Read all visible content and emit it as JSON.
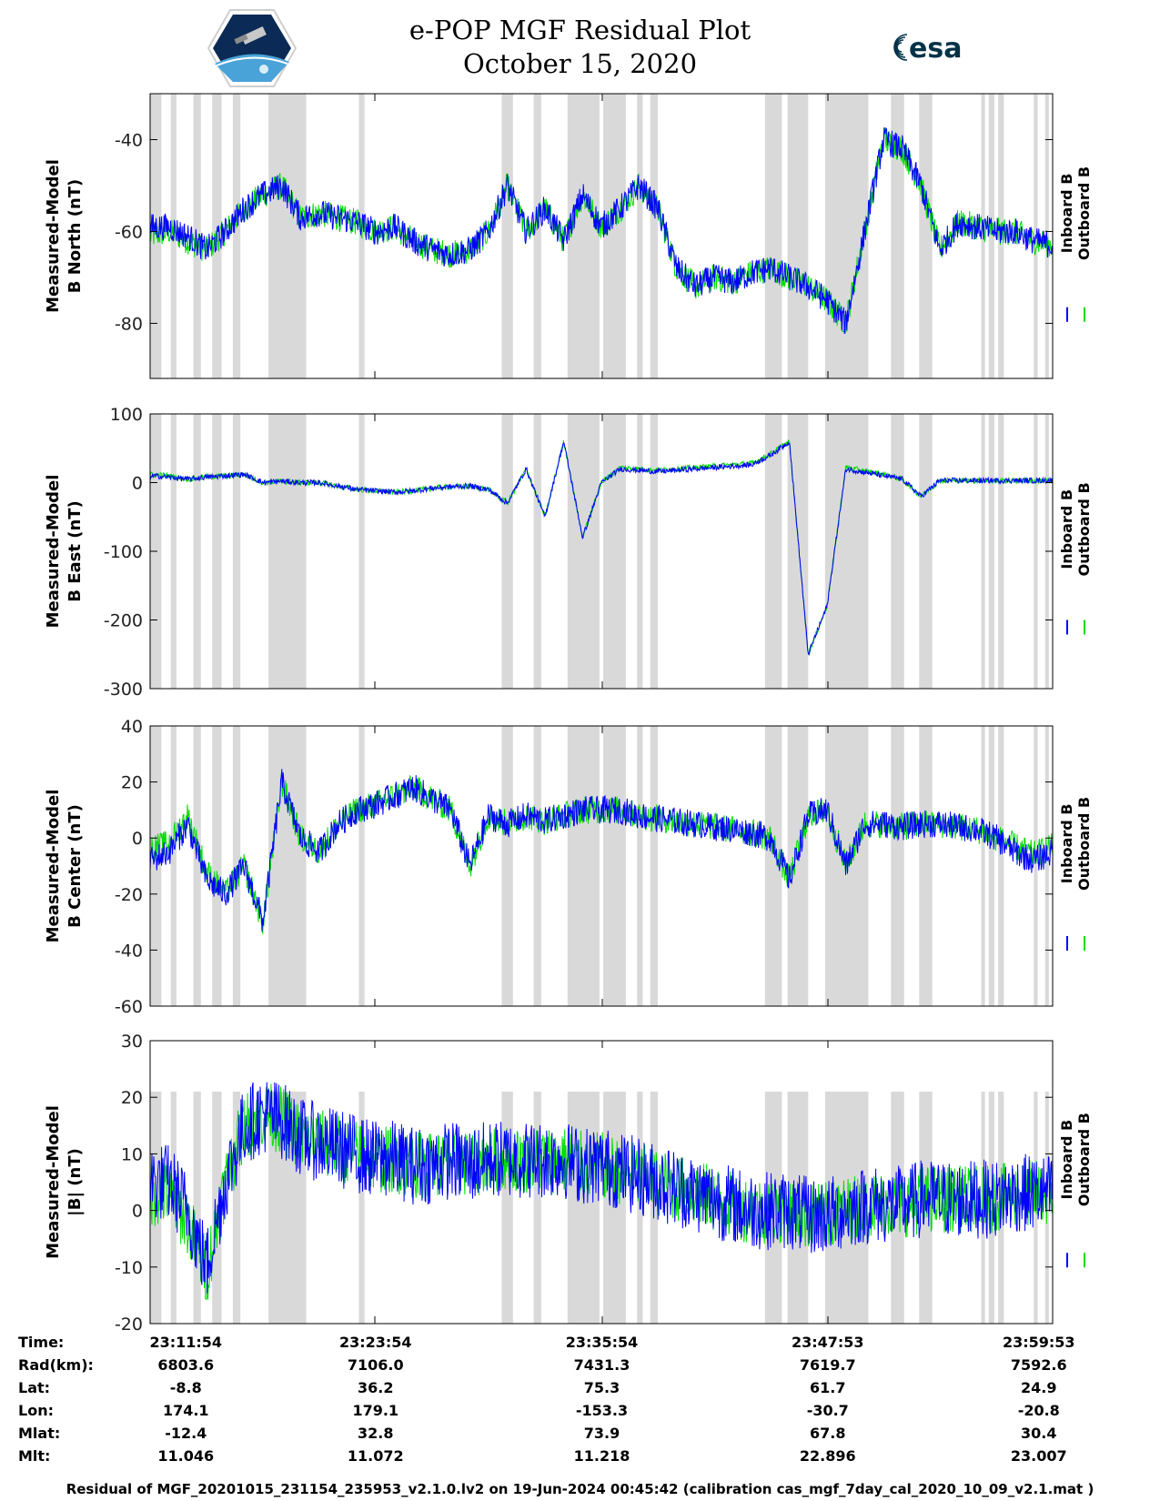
{
  "header": {
    "title_line1": "e-POP MGF Residual Plot",
    "title_line2": "October 15, 2020",
    "logo_left": "cassiope-logo",
    "logo_right_text": "esa"
  },
  "colors": {
    "inboard": "#0000ff",
    "outboard": "#00dd00",
    "shade": "#d9d9d9",
    "axis": "#000000"
  },
  "legend": {
    "inboard_label": "Inboard B",
    "outboard_label": "Outboard B"
  },
  "chart_data": [
    {
      "type": "line",
      "ylabel_line1": "Measured-Model",
      "ylabel_line2": "B North (nT)",
      "ylim": [
        -92,
        -30
      ],
      "yticks": [
        -40,
        -60,
        -80
      ],
      "ytick_labels": [
        "-40",
        "-60",
        "-80"
      ],
      "x_minutes": [
        0,
        1,
        2,
        3,
        4,
        5,
        6,
        7,
        8,
        9,
        10,
        11,
        12,
        13,
        14,
        15,
        16,
        17,
        18,
        19,
        20,
        21,
        22,
        23,
        24,
        25,
        26,
        27,
        28,
        29,
        30,
        31,
        32,
        33,
        34,
        35,
        36,
        37,
        38,
        39,
        40,
        41,
        42,
        43,
        44,
        45,
        46,
        47,
        48
      ],
      "series": [
        {
          "name": "Inboard B",
          "values": [
            -59,
            -59,
            -61,
            -64,
            -60,
            -55,
            -52,
            -50,
            -57,
            -56,
            -57,
            -58,
            -60,
            -59,
            -62,
            -64,
            -65,
            -64,
            -60,
            -50,
            -60,
            -55,
            -62,
            -52,
            -59,
            -55,
            -50,
            -55,
            -68,
            -72,
            -70,
            -71,
            -69,
            -68,
            -70,
            -72,
            -75,
            -80,
            -60,
            -40,
            -42,
            -50,
            -64,
            -58,
            -59,
            -60,
            -60,
            -62,
            -63
          ],
          "noise": 3
        },
        {
          "name": "Outboard B",
          "values": [
            -61,
            -60,
            -62,
            -64,
            -60,
            -55,
            -52,
            -50,
            -57,
            -56,
            -57,
            -58,
            -60,
            -59,
            -62,
            -64,
            -65,
            -64,
            -60,
            -50,
            -60,
            -55,
            -62,
            -52,
            -59,
            -55,
            -50,
            -55,
            -68,
            -72,
            -70,
            -71,
            -69,
            -68,
            -70,
            -72,
            -75,
            -80,
            -60,
            -40,
            -42,
            -50,
            -64,
            -58,
            -59,
            -60,
            -60,
            -62,
            -63
          ],
          "noise": 3
        }
      ]
    },
    {
      "type": "line",
      "ylabel_line1": "Measured-Model",
      "ylabel_line2": "B East (nT)",
      "ylim": [
        -300,
        100
      ],
      "yticks": [
        100,
        0,
        -100,
        -200,
        -300
      ],
      "ytick_labels": [
        "100",
        "0",
        "-100",
        "-200",
        "-300"
      ],
      "x_minutes": [
        0,
        1,
        2,
        3,
        4,
        5,
        6,
        7,
        8,
        9,
        10,
        11,
        12,
        13,
        14,
        15,
        16,
        17,
        18,
        19,
        20,
        21,
        22,
        23,
        24,
        25,
        26,
        27,
        28,
        29,
        30,
        31,
        32,
        33,
        34,
        35,
        36,
        37,
        38,
        39,
        40,
        41,
        42,
        43,
        44,
        45,
        46,
        47,
        48
      ],
      "series": [
        {
          "name": "Inboard B",
          "values": [
            10,
            8,
            5,
            8,
            10,
            12,
            0,
            2,
            0,
            0,
            -5,
            -10,
            -12,
            -14,
            -12,
            -8,
            -6,
            -5,
            -10,
            -30,
            20,
            -50,
            60,
            -80,
            0,
            20,
            18,
            16,
            18,
            20,
            22,
            24,
            26,
            40,
            60,
            -250,
            -180,
            20,
            15,
            10,
            5,
            -20,
            3,
            3,
            3,
            3,
            3,
            3,
            3
          ],
          "noise": 4
        },
        {
          "name": "Outboard B",
          "values": [
            12,
            10,
            5,
            8,
            10,
            12,
            0,
            2,
            0,
            0,
            -5,
            -10,
            -12,
            -14,
            -12,
            -8,
            -6,
            -5,
            -10,
            -30,
            20,
            -50,
            60,
            -80,
            0,
            22,
            20,
            18,
            20,
            22,
            24,
            26,
            28,
            42,
            60,
            -250,
            -180,
            22,
            17,
            12,
            5,
            -20,
            3,
            3,
            3,
            3,
            3,
            3,
            3
          ],
          "noise": 4
        }
      ]
    },
    {
      "type": "line",
      "ylabel_line1": "Measured-Model",
      "ylabel_line2": "B Center (nT)",
      "ylim": [
        -60,
        40
      ],
      "yticks": [
        40,
        20,
        0,
        -20,
        -40,
        -60
      ],
      "ytick_labels": [
        "40",
        "20",
        "0",
        "-20",
        "-40",
        "-60"
      ],
      "x_minutes": [
        0,
        1,
        2,
        3,
        4,
        5,
        6,
        7,
        8,
        9,
        10,
        11,
        12,
        13,
        14,
        15,
        16,
        17,
        18,
        19,
        20,
        21,
        22,
        23,
        24,
        25,
        26,
        27,
        28,
        29,
        30,
        31,
        32,
        33,
        34,
        35,
        36,
        37,
        38,
        39,
        40,
        41,
        42,
        43,
        44,
        45,
        46,
        47,
        48
      ],
      "series": [
        {
          "name": "Inboard B",
          "values": [
            -8,
            -5,
            5,
            -15,
            -20,
            -10,
            -30,
            20,
            0,
            -5,
            5,
            10,
            12,
            15,
            18,
            14,
            10,
            -10,
            8,
            5,
            8,
            6,
            8,
            10,
            10,
            10,
            8,
            7,
            6,
            5,
            4,
            3,
            2,
            0,
            -15,
            8,
            10,
            -10,
            5,
            5,
            4,
            5,
            5,
            4,
            3,
            0,
            -5,
            -8,
            -5
          ],
          "noise": 5
        },
        {
          "name": "Outboard B",
          "values": [
            -4,
            -2,
            8,
            -12,
            -20,
            -10,
            -30,
            20,
            0,
            -5,
            5,
            10,
            12,
            15,
            18,
            14,
            10,
            -10,
            8,
            5,
            8,
            6,
            8,
            10,
            10,
            10,
            8,
            7,
            6,
            5,
            4,
            3,
            2,
            0,
            -15,
            8,
            10,
            -10,
            5,
            5,
            4,
            5,
            5,
            4,
            3,
            0,
            -3,
            -6,
            -3
          ],
          "noise": 5
        }
      ]
    },
    {
      "type": "line",
      "ylabel_line1": "Measured-Model",
      "ylabel_line2": "|B| (nT)",
      "ylim": [
        -20,
        30
      ],
      "yticks": [
        30,
        20,
        10,
        0,
        -10,
        -20
      ],
      "ytick_labels": [
        "30",
        "20",
        "10",
        "0",
        "-10",
        "-20"
      ],
      "x_minutes": [
        0,
        1,
        2,
        3,
        4,
        5,
        6,
        7,
        8,
        9,
        10,
        11,
        12,
        13,
        14,
        15,
        16,
        17,
        18,
        19,
        20,
        21,
        22,
        23,
        24,
        25,
        26,
        27,
        28,
        29,
        30,
        31,
        32,
        33,
        34,
        35,
        36,
        37,
        38,
        39,
        40,
        41,
        42,
        43,
        44,
        45,
        46,
        47,
        48
      ],
      "series": [
        {
          "name": "Inboard B",
          "values": [
            5,
            5,
            0,
            -10,
            5,
            15,
            17,
            16,
            13,
            12,
            11,
            10,
            9,
            9,
            8,
            8,
            9,
            8,
            9,
            9,
            9,
            9,
            9,
            8,
            8,
            7,
            6,
            5,
            4,
            3,
            2,
            1,
            0,
            0,
            0,
            -1,
            -1,
            0,
            1,
            1,
            1,
            2,
            2,
            2,
            2,
            2,
            3,
            3,
            3
          ],
          "noise": 7
        },
        {
          "name": "Outboard B",
          "values": [
            3,
            3,
            -2,
            -11,
            5,
            15,
            17,
            16,
            13,
            12,
            11,
            10,
            9,
            9,
            8,
            8,
            9,
            8,
            9,
            9,
            9,
            9,
            9,
            8,
            8,
            7,
            6,
            5,
            4,
            3,
            2,
            1,
            0,
            0,
            0,
            -1,
            -1,
            0,
            1,
            1,
            1,
            2,
            2,
            2,
            2,
            2,
            3,
            3,
            3
          ],
          "noise": 6
        }
      ]
    }
  ],
  "shading_intervals_minutes": [
    [
      0,
      0.6
    ],
    [
      1.1,
      1.4
    ],
    [
      2.3,
      2.7
    ],
    [
      3.3,
      3.8
    ],
    [
      4.4,
      4.8
    ],
    [
      6.3,
      8.3
    ],
    [
      11.1,
      11.4
    ],
    [
      18.7,
      19.3
    ],
    [
      20.4,
      20.8
    ],
    [
      22.2,
      23.9
    ],
    [
      24.1,
      25.3
    ],
    [
      25.9,
      26.2
    ],
    [
      26.6,
      27.0
    ],
    [
      32.7,
      33.6
    ],
    [
      33.9,
      35.0
    ],
    [
      35.9,
      38.2
    ],
    [
      39.4,
      40.1
    ],
    [
      40.9,
      41.6
    ],
    [
      44.2,
      44.4
    ],
    [
      44.6,
      44.9
    ],
    [
      45.1,
      45.4
    ],
    [
      47.0,
      47.2
    ],
    [
      47.6,
      47.8
    ]
  ],
  "ephemeris": {
    "row_labels": [
      "Time:",
      "Rad(km):",
      "Lat:",
      "Lon:",
      "Mlat:",
      "Mlt:"
    ],
    "columns": [
      [
        "23:11:54",
        "6803.6",
        "-8.8",
        "174.1",
        "-12.4",
        "11.046"
      ],
      [
        "23:23:54",
        "7106.0",
        "36.2",
        "179.1",
        "32.8",
        "11.072"
      ],
      [
        "23:35:54",
        "7431.3",
        "75.3",
        "-153.3",
        "73.9",
        "11.218"
      ],
      [
        "23:47:53",
        "7619.7",
        "61.7",
        "-30.7",
        "67.8",
        "22.896"
      ],
      [
        "23:59:53",
        "7592.6",
        "24.9",
        "-20.8",
        "30.4",
        "23.007"
      ]
    ]
  },
  "footer": "Residual of MGF_20201015_231154_235953_v2.1.0.lv2 on 19-Jun-2024 00:45:42 (calibration cas_mgf_7day_cal_2020_10_09_v2.1.mat )"
}
